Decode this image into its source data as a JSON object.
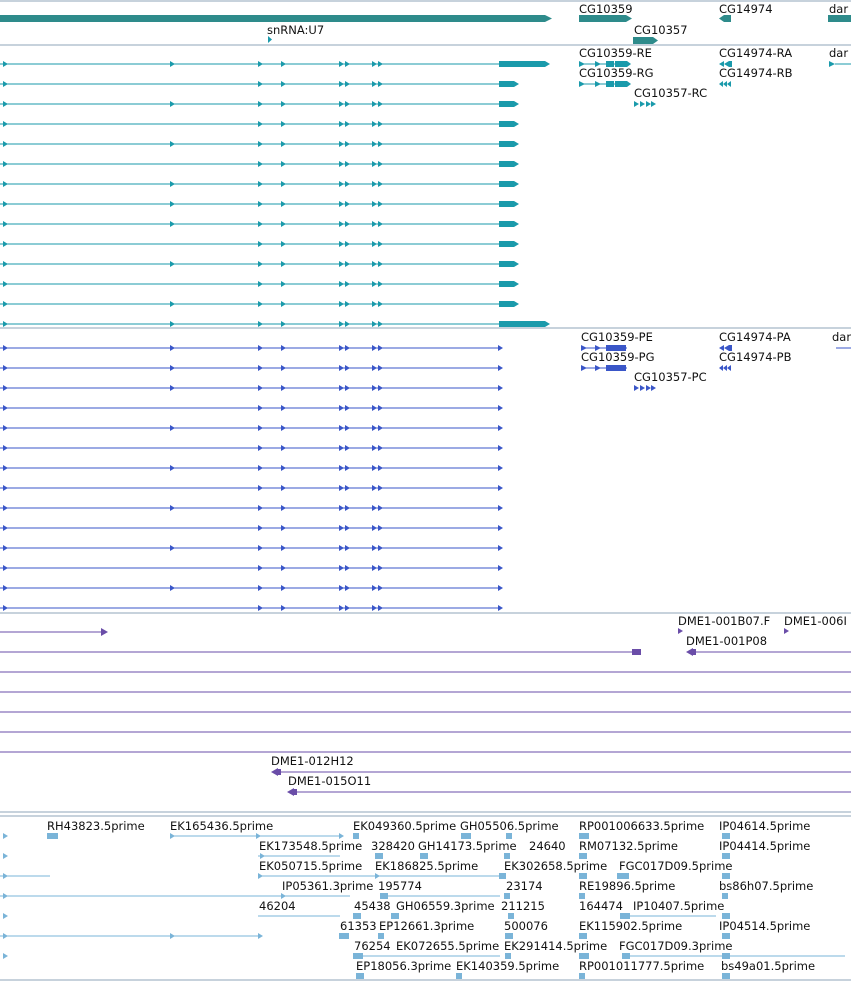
{
  "colors": {
    "gene": "#2e8b8b",
    "transcript": "#1a9aab",
    "protein": "#3a56c8",
    "clone": "#6a4da8",
    "est": "#7ab4d8",
    "divider": "#8fa4b8"
  },
  "tracks": {
    "genes": {
      "labels": [
        "CG10359",
        "CG14974",
        "dar",
        "snRNA:U7",
        "CG10357"
      ]
    },
    "transcripts": {
      "labels": [
        "CG10359-RE",
        "CG14974-RA",
        "dar",
        "CG10359-RG",
        "CG14974-RB",
        "CG10357-RC"
      ]
    },
    "proteins": {
      "labels": [
        "CG10359-PE",
        "CG14974-PA",
        "dar",
        "CG10359-PG",
        "CG14974-PB",
        "CG10357-PC"
      ]
    },
    "clones": {
      "labels": [
        "DME1-001B07.F",
        "DME1-006I",
        "DME1-001P08",
        "DME1-012H12",
        "DME1-015O11"
      ]
    },
    "ests": {
      "labels": [
        "RH43823.5prime",
        "EK165436.5prime",
        "EK049360.5prime",
        "GH05506.5prime",
        "RP001006633.5prime",
        "IP04614.5prime",
        "EK173548.5prime",
        "328420",
        "GH14173.5prime",
        "24640",
        "RM07132.5prime",
        "IP04414.5prime",
        "EK050715.5prime",
        "EK186825.5prime",
        "EK302658.5prime",
        "FGC017D09.5prime",
        "IP05361.3prime",
        "195774",
        "23174",
        "RE19896.5prime",
        "bs86h07.5prime",
        "46204",
        "45438",
        "GH06559.3prime",
        "211215",
        "164474",
        "IP10407.5prime",
        "61353",
        "EP12661.3prime",
        "500076",
        "EK115902.5prime",
        "IP04514.5prime",
        "76254",
        "EK072655.5prime",
        "EK291414.5prime",
        "FGC017D09.3prime",
        "EP18056.3prime",
        "EK140359.5prime",
        "RP001011777.5prime",
        "bs49a01.5prime"
      ]
    }
  }
}
